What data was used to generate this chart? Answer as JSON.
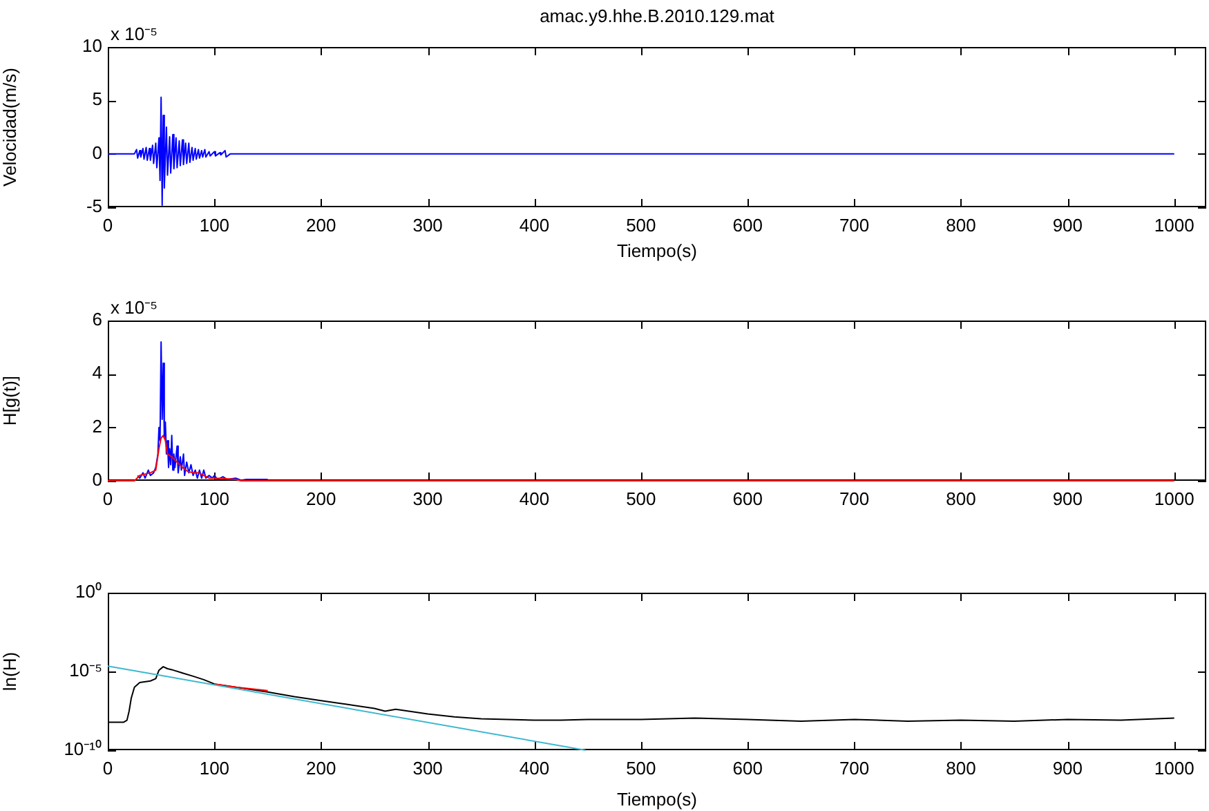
{
  "chart_data": [
    {
      "type": "line",
      "title": "amac.y9.hhe.B.2010.129.mat",
      "xlabel": "Tiempo(s)",
      "ylabel": "Velocidad(m/s)",
      "annotations": [
        "x 10⁻⁵"
      ],
      "xlim": [
        0,
        1030
      ],
      "xticks": [
        0,
        100,
        200,
        300,
        400,
        500,
        600,
        700,
        800,
        900,
        1000
      ],
      "ylim": [
        -5,
        10
      ],
      "yticks": [
        -5,
        0,
        5,
        10
      ],
      "series": [
        {
          "color": "#0000ff",
          "x": [
            0,
            25,
            27,
            28,
            30,
            31,
            33,
            34,
            36,
            37,
            39,
            40,
            42,
            43,
            45,
            46,
            48,
            49,
            50,
            51,
            52,
            53,
            55,
            56,
            58,
            59,
            61,
            62,
            64,
            65,
            67,
            68,
            70,
            71,
            73,
            74,
            76,
            77,
            79,
            80,
            82,
            83,
            85,
            86,
            88,
            89,
            91,
            92,
            95,
            96,
            100,
            101,
            105,
            106,
            110,
            111,
            115,
            1000
          ],
          "values": [
            0,
            0,
            0.4,
            -0.4,
            0.3,
            -0.3,
            0.5,
            -0.5,
            0.6,
            -0.6,
            0.5,
            -0.6,
            0.8,
            -0.9,
            1.0,
            -1.3,
            1.5,
            -2.5,
            5.3,
            -4.8,
            3.6,
            -3.2,
            2.5,
            -2.0,
            1.6,
            -1.8,
            1.8,
            -1.4,
            1.5,
            -1.3,
            1.2,
            -1.1,
            1.3,
            -1.0,
            1.0,
            -0.9,
            1.0,
            -0.8,
            0.6,
            -0.6,
            0.5,
            -0.5,
            0.4,
            -0.4,
            0.3,
            -0.3,
            0.4,
            -0.3,
            0.2,
            -0.2,
            0.2,
            -0.2,
            0.1,
            -0.1,
            0.3,
            -0.3,
            0,
            0
          ]
        }
      ]
    },
    {
      "type": "line",
      "ylabel": "H[g(t)]",
      "annotations": [
        "x 10⁻⁵"
      ],
      "xlim": [
        0,
        1030
      ],
      "xticks": [
        0,
        100,
        200,
        300,
        400,
        500,
        600,
        700,
        800,
        900,
        1000
      ],
      "ylim": [
        0,
        6
      ],
      "yticks": [
        0,
        2,
        4,
        6
      ],
      "series": [
        {
          "color": "#0000ff",
          "x": [
            28,
            30,
            33,
            35,
            38,
            40,
            43,
            45,
            47,
            48,
            49,
            50,
            51,
            52,
            53,
            54,
            55,
            56,
            57,
            58,
            59,
            60,
            61,
            62,
            63,
            65,
            66,
            68,
            69,
            71,
            72,
            74,
            76,
            78,
            80,
            82,
            84,
            86,
            88,
            90,
            92,
            95,
            98,
            100,
            103,
            108,
            112,
            120,
            125,
            130,
            140,
            150
          ],
          "values": [
            0.2,
            0.1,
            0.3,
            0.1,
            0.4,
            0.2,
            0.3,
            0.5,
            1.0,
            2.0,
            1.5,
            5.2,
            2.3,
            4.4,
            1.6,
            2.2,
            1.0,
            1.5,
            0.5,
            1.2,
            0.6,
            1.7,
            0.4,
            1.0,
            0.5,
            1.3,
            0.3,
            0.9,
            0.4,
            1.0,
            0.2,
            0.7,
            0.3,
            0.6,
            0.2,
            0.4,
            0.1,
            0.4,
            0.1,
            0.4,
            0.1,
            0.2,
            0.1,
            0.2,
            0.05,
            0.15,
            0.05,
            0.1,
            0.02,
            0.05,
            0.05,
            0.05
          ]
        },
        {
          "color": "#ff0000",
          "x": [
            0,
            25,
            30,
            40,
            45,
            48,
            50,
            52,
            54,
            56,
            60,
            65,
            70,
            75,
            80,
            85,
            90,
            95,
            100,
            110,
            120,
            125,
            1000
          ],
          "values": [
            0,
            0,
            0.2,
            0.3,
            0.4,
            1.2,
            1.6,
            1.7,
            1.5,
            1.0,
            0.9,
            0.7,
            0.5,
            0.35,
            0.3,
            0.3,
            0.2,
            0.1,
            0.1,
            0.08,
            0.05,
            0,
            0
          ]
        }
      ]
    },
    {
      "type": "line",
      "xlabel": "Tiempo(s)",
      "ylabel": "ln(H)",
      "log": true,
      "xlim": [
        0,
        1030
      ],
      "xticks": [
        0,
        100,
        200,
        300,
        400,
        500,
        600,
        700,
        800,
        900,
        1000
      ],
      "ylim": [
        1e-10,
        1
      ],
      "yticks": [
        {
          "value": 1e-10,
          "label": "10⁻¹⁰"
        },
        {
          "value": 1e-05,
          "label": "10⁻⁵"
        },
        {
          "value": 1,
          "label": "10⁰"
        }
      ],
      "series": [
        {
          "color": "#000000",
          "x": [
            0,
            15,
            18,
            20,
            22,
            25,
            30,
            40,
            45,
            48,
            52,
            56,
            60,
            70,
            80,
            90,
            100,
            120,
            150,
            175,
            200,
            225,
            250,
            260,
            270,
            300,
            325,
            350,
            375,
            400,
            425,
            450,
            500,
            550,
            600,
            650,
            700,
            750,
            800,
            850,
            900,
            950,
            1000
          ],
          "values": [
            6e-09,
            6e-09,
            8e-09,
            3e-08,
            2e-07,
            1e-06,
            2e-06,
            2.5e-06,
            3.5e-06,
            1.2e-05,
            2e-05,
            1.5e-05,
            1.3e-05,
            8e-06,
            5e-06,
            3e-06,
            1.6e-06,
            1e-06,
            5e-07,
            2.5e-07,
            1.4e-07,
            8e-08,
            4.5e-08,
            3e-08,
            4e-08,
            2e-08,
            1.3e-08,
            1e-08,
            9e-09,
            8e-09,
            8e-09,
            9e-09,
            9e-09,
            1.1e-08,
            9e-09,
            7e-09,
            9e-09,
            7e-09,
            8e-09,
            7e-09,
            9e-09,
            8e-09,
            1.1e-08
          ]
        },
        {
          "color": "#ff0000",
          "x": [
            100,
            120,
            150
          ],
          "values": [
            1.6e-06,
            1e-06,
            6e-07
          ]
        },
        {
          "color": "#3cb8d0",
          "x": [
            0,
            448
          ],
          "values": [
            2.2e-05,
            1e-10
          ]
        }
      ]
    }
  ]
}
